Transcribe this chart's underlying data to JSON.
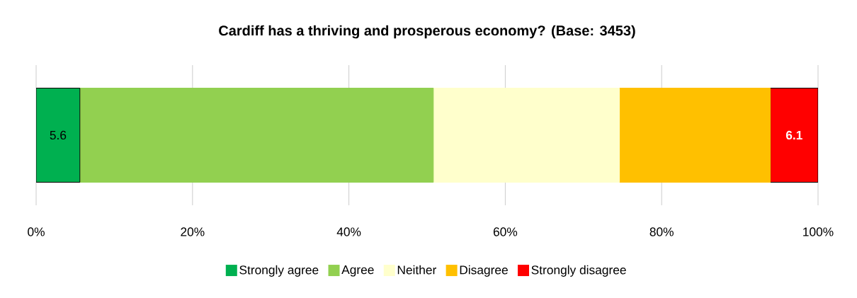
{
  "chart_data": {
    "type": "bar",
    "orientation": "horizontal",
    "stacked": true,
    "title": "Cardiff has a thriving and prosperous economy? (Base: 3453)",
    "categories": [
      null
    ],
    "series": [
      {
        "name": "Strongly agree",
        "color": "#00b050",
        "values": [
          5.6
        ],
        "value_labels": [
          "5.6"
        ]
      },
      {
        "name": "Agree",
        "color": "#92d050",
        "values": [
          45.2
        ]
      },
      {
        "name": "Neither",
        "color": "#ffffcc",
        "values": [
          23.8
        ]
      },
      {
        "name": "Disagree",
        "color": "#ffc000",
        "values": [
          19.3
        ]
      },
      {
        "name": "Strongly disagree",
        "color": "#ff0000",
        "values": [
          6.1
        ],
        "value_labels": [
          "6.1"
        ]
      }
    ],
    "xlim": [
      0,
      100
    ],
    "xticks": [
      {
        "value": 0,
        "label": "0%"
      },
      {
        "value": 20,
        "label": "20%"
      },
      {
        "value": 40,
        "label": "40%"
      },
      {
        "value": 60,
        "label": "60%"
      },
      {
        "value": 80,
        "label": "80%"
      },
      {
        "value": 100,
        "label": "100%"
      }
    ],
    "grid": "x",
    "legend": "bottom"
  }
}
